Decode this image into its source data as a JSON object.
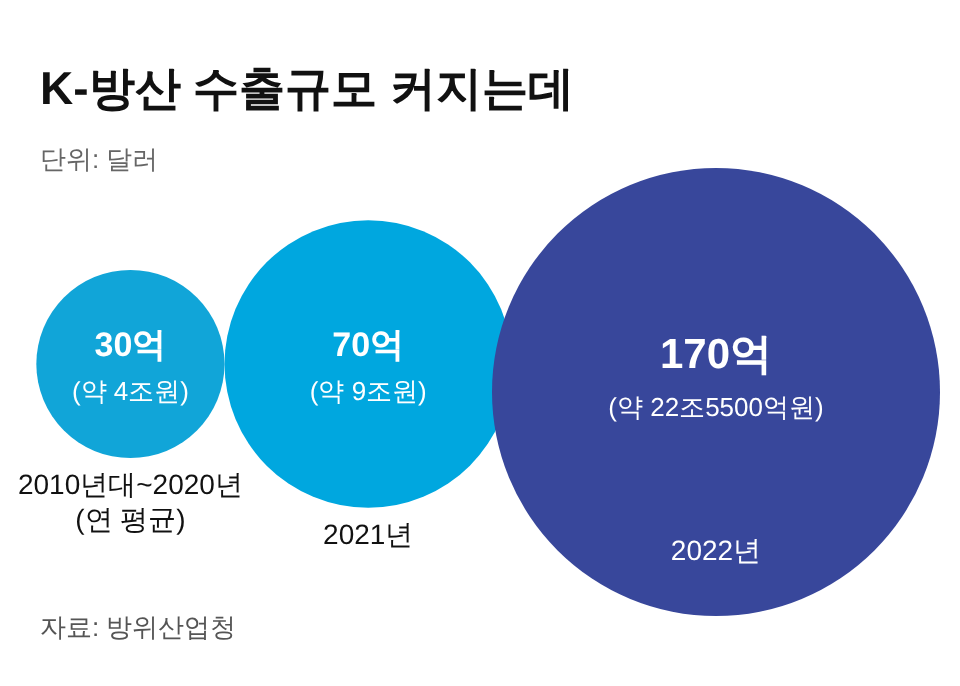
{
  "chart_data": {
    "type": "other",
    "title": "K-방산 수출규모 커지는데",
    "subtitle": "단위: 달러",
    "categories": [
      "2010년대~2020년\n(연 평균)",
      "2021년",
      "2022년"
    ],
    "values": [
      30,
      70,
      170
    ],
    "value_labels": [
      "30억",
      "70억",
      "170억"
    ],
    "colors": [
      "#11a5d8",
      "#00a7df",
      "#38479b"
    ],
    "annotations": [
      "(약 4조원)",
      "(약 9조원)",
      "(약 22조5500억원)",
      "자료: 방위산업청"
    ]
  }
}
